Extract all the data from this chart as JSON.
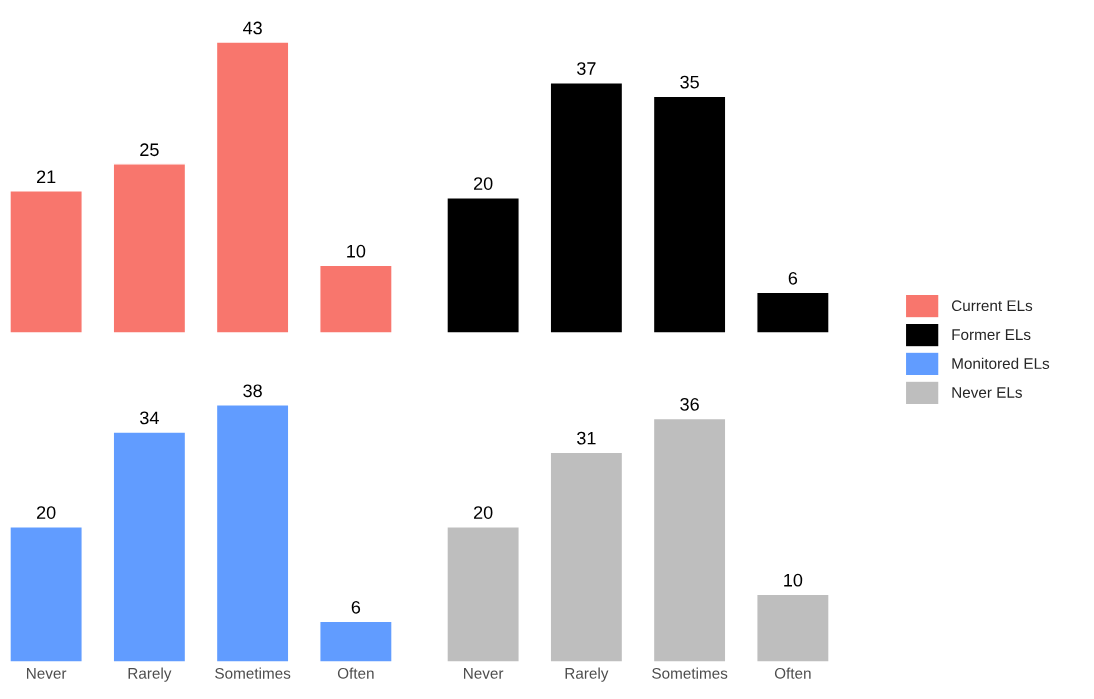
{
  "chart_data": [
    {
      "type": "bar",
      "categories": [
        null,
        null,
        null,
        null
      ],
      "series": [
        {
          "name": "Current ELs",
          "color": "#f8766d",
          "values": [
            21,
            25,
            43,
            10
          ]
        }
      ],
      "data_labels": true,
      "tick_labels": false,
      "legend": "right",
      "grid": false
    },
    {
      "type": "bar",
      "categories": [
        null,
        null,
        null,
        null
      ],
      "series": [
        {
          "name": "Former ELs",
          "color": "#000000",
          "values": [
            20,
            37,
            35,
            6
          ]
        }
      ],
      "data_labels": true,
      "tick_labels": false,
      "legend": "right",
      "grid": false
    },
    {
      "type": "bar",
      "categories": [
        "Never",
        "Rarely",
        "Sometimes",
        "Often"
      ],
      "series": [
        {
          "name": "Monitored ELs",
          "color": "#619cff",
          "values": [
            20,
            34,
            38,
            6
          ]
        }
      ],
      "data_labels": true,
      "tick_labels": "x",
      "legend": "right",
      "grid": false
    },
    {
      "type": "bar",
      "categories": [
        "Never",
        "Rarely",
        "Sometimes",
        "Often"
      ],
      "series": [
        {
          "name": "Never ELs",
          "color": "#bebebe",
          "values": [
            20,
            31,
            36,
            10
          ]
        }
      ],
      "data_labels": true,
      "tick_labels": "x",
      "legend": "right",
      "grid": false
    }
  ]
}
